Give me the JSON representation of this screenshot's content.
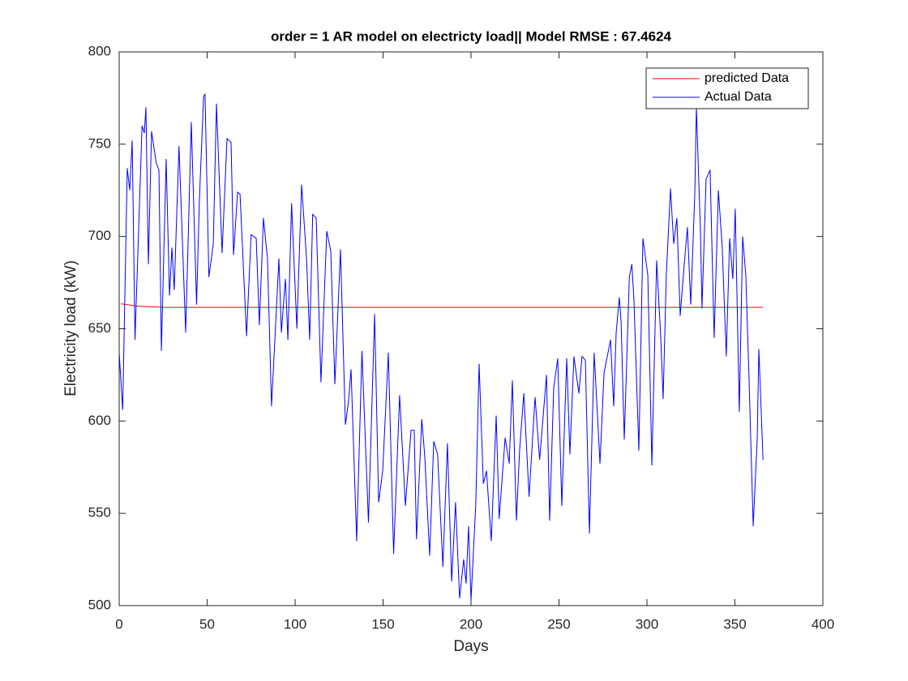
{
  "chart_data": {
    "type": "line",
    "title": "order = 1 AR model on electricty load|| Model RMSE : 67.4624",
    "xlabel": "Days",
    "ylabel": "Electricity load (kW)",
    "xlim": [
      0,
      400
    ],
    "xticks": [
      0,
      50,
      100,
      150,
      200,
      250,
      300,
      350,
      400
    ],
    "ylim": [
      500,
      800
    ],
    "yticks": [
      500,
      550,
      600,
      650,
      700,
      750,
      800
    ],
    "grid": false,
    "legend": "upper right",
    "series": [
      {
        "name": "predicted Data",
        "color": "#ff0000",
        "x": [
          1,
          5,
          10,
          15,
          20,
          25,
          366
        ],
        "values": [
          663.5,
          663,
          662.3,
          662,
          661.8,
          661.6,
          661.6
        ]
      },
      {
        "name": "Actual Data",
        "color": "#0000ff",
        "x": [
          0,
          2,
          4.6,
          6,
          7.4,
          9,
          13,
          14.3,
          15.2,
          16.6,
          18.4,
          21,
          22.6,
          24,
          26.7,
          28.6,
          30,
          31.3,
          34,
          37.8,
          41,
          44,
          45.6,
          48,
          48.8,
          51,
          53.5,
          55.3,
          58.5,
          61.3,
          63.6,
          65,
          67.3,
          68.7,
          72.4,
          75,
          77.9,
          79.7,
          82,
          84.3,
          86.6,
          90.8,
          92.2,
          94.5,
          95.9,
          98,
          101,
          103.7,
          106.5,
          108.3,
          110,
          112,
          114.7,
          118,
          120.3,
          122.6,
          125.8,
          128.6,
          130.4,
          131.8,
          135,
          138,
          141.7,
          145.2,
          147.5,
          149.8,
          153,
          156,
          159.4,
          162.7,
          165.9,
          167.7,
          169,
          172,
          173.7,
          176.5,
          178.8,
          181,
          184,
          186.6,
          189,
          191.2,
          193.5,
          195.8,
          197.2,
          198.6,
          200,
          202.7,
          204.6,
          207,
          208.8,
          211.5,
          214.3,
          216,
          219.4,
          221.7,
          223.5,
          225.8,
          227.6,
          230,
          233,
          236.4,
          239,
          242.9,
          244.7,
          247,
          249.3,
          251.6,
          254.4,
          256.2,
          258.5,
          261.3,
          263.1,
          265,
          267.3,
          270,
          273.3,
          275.6,
          279.3,
          281.1,
          282.5,
          284.3,
          285.3,
          287.1,
          290,
          291.4,
          292.6,
          295.4,
          297.7,
          300.5,
          302.8,
          305.5,
          307.8,
          309.2,
          311,
          313.4,
          315.2,
          317,
          318.9,
          320.7,
          323,
          324.9,
          327.2,
          328.1,
          330.4,
          331.3,
          333.6,
          335.9,
          338.2,
          340.6,
          342.8,
          345.1,
          347,
          348.8,
          350.2,
          352.5,
          354.4,
          356.2,
          358,
          360.4,
          362.7,
          363.6,
          366
        ],
        "values": [
          637,
          606,
          737,
          725,
          752,
          644,
          760,
          756,
          770,
          685,
          757,
          740,
          736,
          638,
          742,
          668,
          694,
          671,
          749,
          648,
          762,
          663,
          720,
          776,
          777,
          678,
          696,
          772,
          691,
          753,
          751,
          690,
          724,
          723,
          646,
          701,
          699,
          652,
          710,
          688,
          608,
          688,
          648,
          677,
          644,
          718,
          650,
          728,
          688,
          644,
          712,
          710,
          621,
          703,
          692,
          620,
          693,
          598,
          611,
          628,
          535,
          638,
          545,
          658,
          556,
          573,
          637,
          528,
          614,
          554,
          595,
          595,
          536,
          601,
          581,
          527,
          589,
          582,
          521,
          588,
          513,
          556,
          504,
          525,
          512,
          543,
          503,
          555,
          631,
          566,
          573,
          535,
          603,
          547,
          591,
          577,
          622,
          546,
          584,
          615,
          559,
          613,
          579,
          625,
          546,
          618,
          634,
          554,
          634,
          582,
          635,
          615,
          635,
          633,
          539,
          637,
          577,
          626,
          644,
          608,
          648,
          667,
          654,
          590,
          678,
          685,
          666,
          584,
          699,
          679,
          576,
          687,
          646,
          612,
          679,
          726,
          696,
          710,
          657,
          679,
          705,
          663,
          723,
          770,
          703,
          661,
          731,
          736,
          645,
          725,
          694,
          635,
          699,
          677,
          715,
          605,
          700,
          679,
          624,
          543,
          591,
          639,
          579
        ]
      }
    ]
  }
}
